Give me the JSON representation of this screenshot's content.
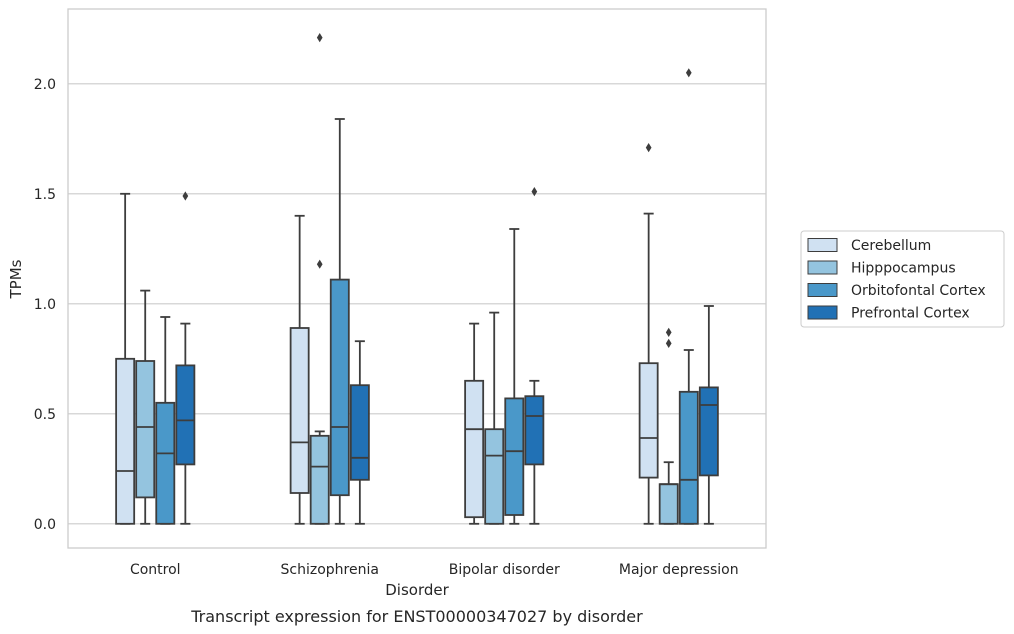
{
  "chart_data": {
    "type": "box",
    "caption": "Transcript expression for ENST00000347027 by disorder",
    "xlabel": "Disorder",
    "ylabel": "TPMs",
    "ylim": [
      -0.11,
      2.34
    ],
    "yticks": [
      0.0,
      0.5,
      1.0,
      1.5,
      2.0
    ],
    "ytick_labels": [
      "0.0",
      "0.5",
      "1.0",
      "1.5",
      "2.0"
    ],
    "grid": "horizontal",
    "legend_position": "right",
    "categories": [
      "Control",
      "Schizophrenia",
      "Bipolar disorder",
      "Major depression"
    ],
    "series": [
      {
        "name": "Cerebellum",
        "color": "#d0e1f2",
        "boxes": [
          {
            "whislo": 0.0,
            "q1": 0.0,
            "med": 0.24,
            "q3": 0.75,
            "whishi": 1.5,
            "fliers": []
          },
          {
            "whislo": 0.0,
            "q1": 0.14,
            "med": 0.37,
            "q3": 0.89,
            "whishi": 1.4,
            "fliers": []
          },
          {
            "whislo": 0.0,
            "q1": 0.03,
            "med": 0.43,
            "q3": 0.65,
            "whishi": 0.91,
            "fliers": []
          },
          {
            "whislo": 0.0,
            "q1": 0.21,
            "med": 0.39,
            "q3": 0.73,
            "whishi": 1.41,
            "fliers": [
              1.71
            ]
          }
        ]
      },
      {
        "name": "Hipppocampus",
        "color": "#94c4df",
        "boxes": [
          {
            "whislo": 0.0,
            "q1": 0.12,
            "med": 0.44,
            "q3": 0.74,
            "whishi": 1.06,
            "fliers": []
          },
          {
            "whislo": 0.0,
            "q1": 0.0,
            "med": 0.26,
            "q3": 0.4,
            "whishi": 0.42,
            "fliers": [
              1.18,
              2.21
            ]
          },
          {
            "whislo": 0.0,
            "q1": 0.0,
            "med": 0.31,
            "q3": 0.43,
            "whishi": 0.96,
            "fliers": []
          },
          {
            "whislo": 0.0,
            "q1": 0.0,
            "med": 0.18,
            "q3": 0.18,
            "whishi": 0.28,
            "fliers": [
              0.82,
              0.87
            ]
          }
        ]
      },
      {
        "name": "Orbitofontal Cortex",
        "color": "#4a98c9",
        "boxes": [
          {
            "whislo": 0.0,
            "q1": 0.0,
            "med": 0.32,
            "q3": 0.55,
            "whishi": 0.94,
            "fliers": []
          },
          {
            "whislo": 0.0,
            "q1": 0.13,
            "med": 0.44,
            "q3": 1.11,
            "whishi": 1.84,
            "fliers": []
          },
          {
            "whislo": 0.0,
            "q1": 0.04,
            "med": 0.33,
            "q3": 0.57,
            "whishi": 1.34,
            "fliers": []
          },
          {
            "whislo": 0.0,
            "q1": 0.0,
            "med": 0.2,
            "q3": 0.6,
            "whishi": 0.79,
            "fliers": [
              2.05
            ]
          }
        ]
      },
      {
        "name": "Prefrontal Cortex",
        "color": "#2171b5",
        "boxes": [
          {
            "whislo": 0.0,
            "q1": 0.27,
            "med": 0.47,
            "q3": 0.72,
            "whishi": 0.91,
            "fliers": [
              1.49
            ]
          },
          {
            "whislo": 0.0,
            "q1": 0.2,
            "med": 0.3,
            "q3": 0.63,
            "whishi": 0.83,
            "fliers": []
          },
          {
            "whislo": 0.0,
            "q1": 0.27,
            "med": 0.49,
            "q3": 0.58,
            "whishi": 0.65,
            "fliers": [
              1.51
            ]
          },
          {
            "whislo": 0.0,
            "q1": 0.22,
            "med": 0.54,
            "q3": 0.62,
            "whishi": 0.99,
            "fliers": []
          }
        ]
      }
    ]
  }
}
